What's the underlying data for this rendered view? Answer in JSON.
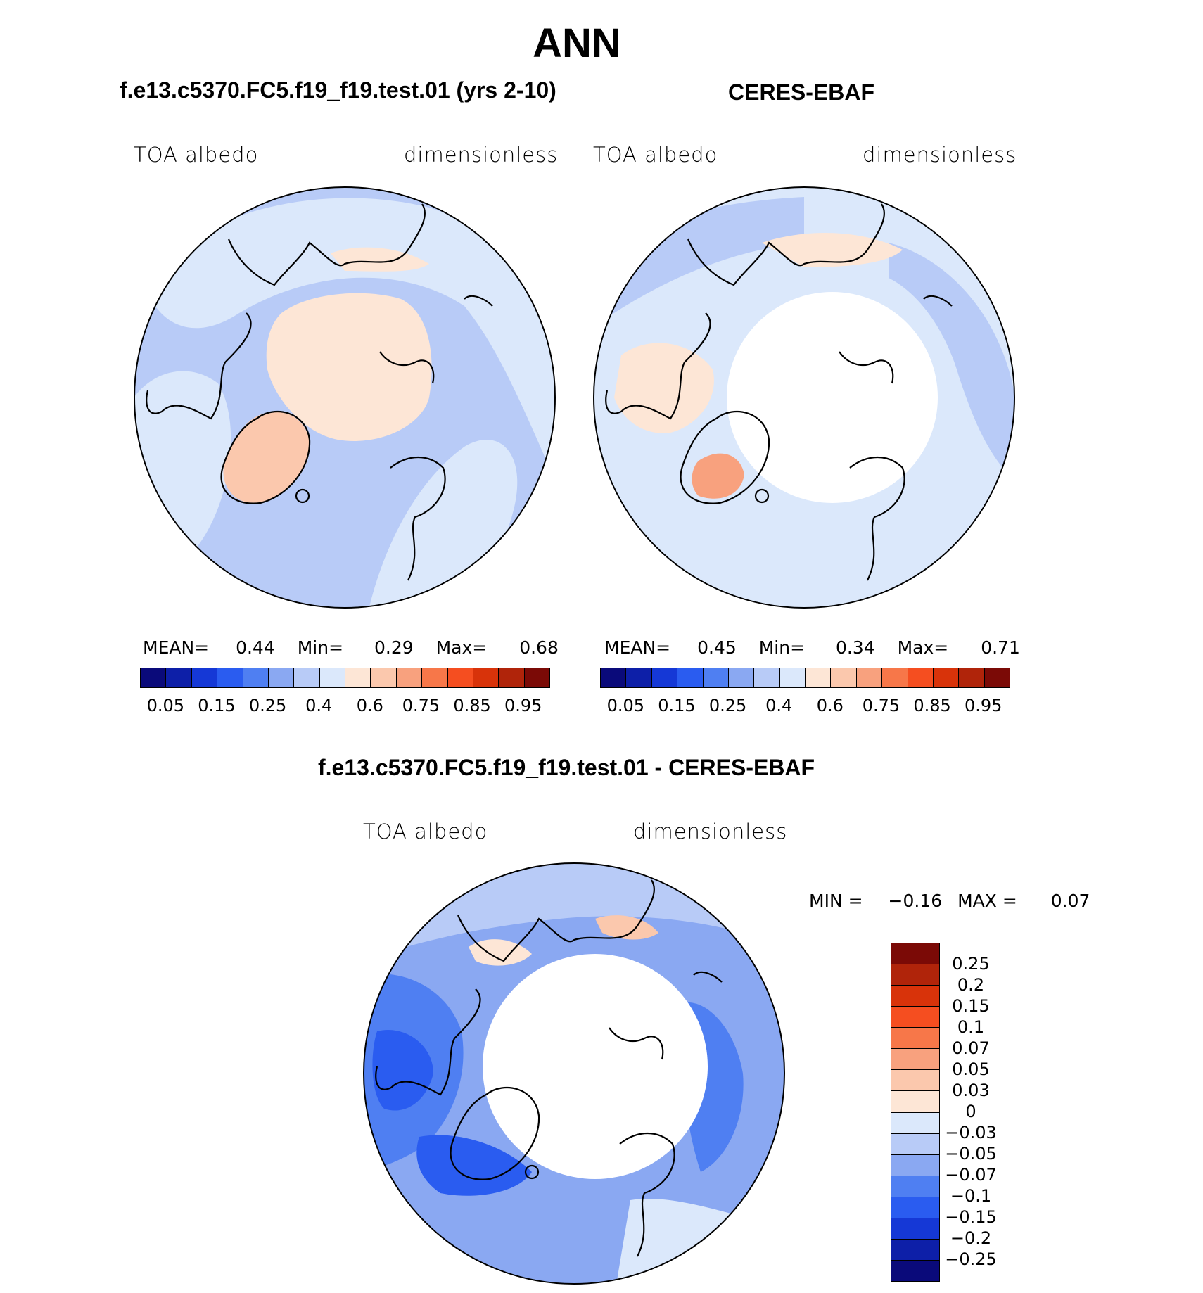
{
  "figure_title": "ANN",
  "panels": {
    "model": {
      "title": "f.e13.c5370.FC5.f19_f19.test.01 (yrs 2-10)",
      "left_label": "TOA albedo",
      "right_label": "dimensionless",
      "mean_label": "MEAN=",
      "mean_value": "0.44",
      "min_label": "Min=",
      "min_value": "0.29",
      "max_label": "Max=",
      "max_value": "0.68"
    },
    "obs": {
      "title": "CERES-EBAF",
      "left_label": "TOA albedo",
      "right_label": "dimensionless",
      "mean_label": "MEAN=",
      "mean_value": "0.45",
      "min_label": "Min=",
      "min_value": "0.34",
      "max_label": "Max=",
      "max_value": "0.71"
    },
    "diff": {
      "title": "f.e13.c5370.FC5.f19_f19.test.01 - CERES-EBAF",
      "left_label": "TOA albedo",
      "right_label": "dimensionless",
      "min_label": "MIN =",
      "min_value": "−0.16",
      "max_label": "MAX =",
      "max_value": "0.07"
    }
  },
  "colors": {
    "abs_scale": [
      "#0a0a7a",
      "#0d1fa8",
      "#1538d6",
      "#2a5cf0",
      "#4f7ff2",
      "#8aa8f2",
      "#b8cbf7",
      "#dbe8fb",
      "#fde6d6",
      "#fbc8ad",
      "#f8a17e",
      "#f77749",
      "#f54e20",
      "#d8330a",
      "#b0240a",
      "#7b0a06"
    ],
    "diff_scale": [
      "#7b0a06",
      "#b0240a",
      "#d8330a",
      "#f54e20",
      "#f77749",
      "#f8a17e",
      "#fbc8ad",
      "#fde6d6",
      "#dbe8fb",
      "#b8cbf7",
      "#8aa8f2",
      "#4f7ff2",
      "#2a5cf0",
      "#1538d6",
      "#0d1fa8",
      "#0a0a7a"
    ]
  },
  "chart_data": [
    {
      "type": "heatmap",
      "projection": "north polar stereographic",
      "title": "f.e13.c5370.FC5.f19_f19.test.01 (yrs 2-10)",
      "variable": "TOA albedo",
      "units": "dimensionless",
      "stats": {
        "mean": 0.44,
        "min": 0.29,
        "max": 0.68
      },
      "colorbar_ticks": [
        "0.05",
        "0.15",
        "0.25",
        "0.4",
        "0.6",
        "0.75",
        "0.85",
        "0.95"
      ]
    },
    {
      "type": "heatmap",
      "projection": "north polar stereographic",
      "title": "CERES-EBAF",
      "variable": "TOA albedo",
      "units": "dimensionless",
      "stats": {
        "mean": 0.45,
        "min": 0.34,
        "max": 0.71
      },
      "colorbar_ticks": [
        "0.05",
        "0.15",
        "0.25",
        "0.4",
        "0.6",
        "0.75",
        "0.85",
        "0.95"
      ]
    },
    {
      "type": "heatmap",
      "projection": "north polar stereographic",
      "title": "f.e13.c5370.FC5.f19_f19.test.01 - CERES-EBAF",
      "variable": "TOA albedo",
      "units": "dimensionless",
      "stats": {
        "min": -0.16,
        "max": 0.07
      },
      "colorbar_levels": [
        "0.25",
        "0.2",
        "0.15",
        "0.1",
        "0.07",
        "0.05",
        "0.03",
        "0",
        "−0.03",
        "−0.05",
        "−0.07",
        "−0.1",
        "−0.15",
        "−0.2",
        "−0.25"
      ]
    }
  ]
}
